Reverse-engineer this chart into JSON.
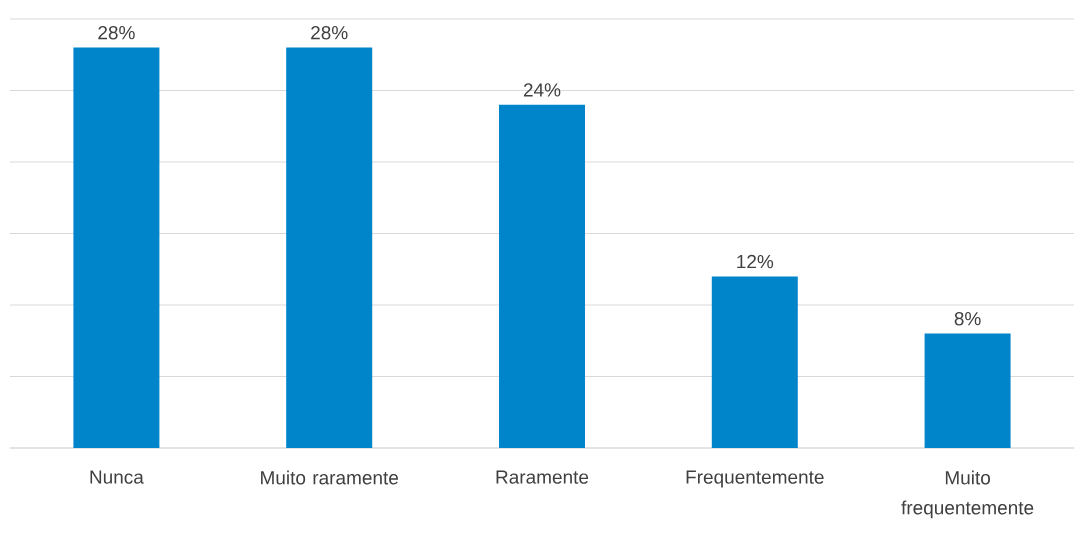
{
  "chart_data": {
    "type": "bar",
    "categories": [
      "Nunca",
      "Muito raramente",
      "Raramente",
      "Frequentemente",
      "Muito frequentemente"
    ],
    "values": [
      28,
      28,
      24,
      12,
      8
    ],
    "value_labels": [
      "28%",
      "28%",
      "24%",
      "12%",
      "8%"
    ],
    "color": "#0085ca",
    "ylim": [
      0,
      30
    ],
    "yticks": [
      {
        "value": 0,
        "label": null
      },
      {
        "value": 5,
        "label": null
      },
      {
        "value": 10,
        "label": null
      },
      {
        "value": 15,
        "label": null
      },
      {
        "value": 20,
        "label": null
      },
      {
        "value": 25,
        "label": null
      },
      {
        "value": 30,
        "label": null
      }
    ],
    "tick_labels": "x",
    "grid": "y"
  }
}
